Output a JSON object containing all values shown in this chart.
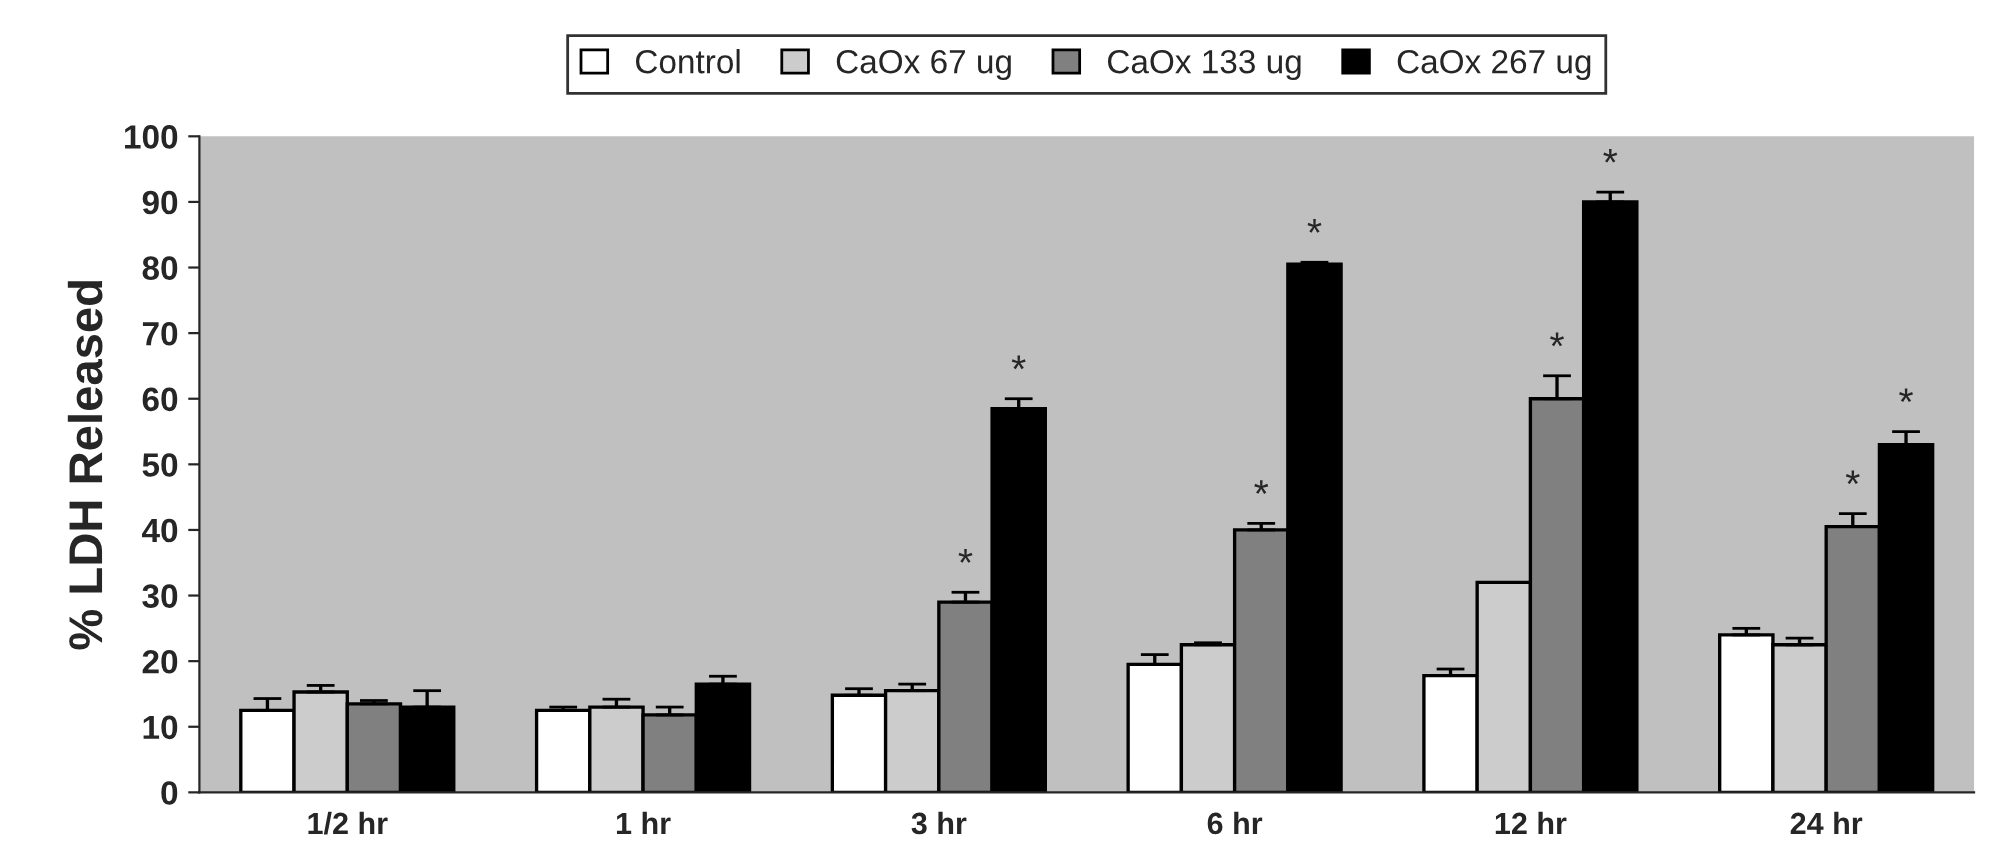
{
  "chart_data": {
    "type": "bar",
    "ylabel": "% LDH Released",
    "categories": [
      "1/2 hr",
      "1 hr",
      "3 hr",
      "6 hr",
      "12 hr",
      "24 hr"
    ],
    "series": [
      {
        "name": "Control",
        "color": "#ffffff",
        "values": [
          12.5,
          12.5,
          14.8,
          19.5,
          17.8,
          24
        ],
        "errors": [
          1.8,
          0.5,
          1,
          1.5,
          1,
          1
        ]
      },
      {
        "name": "CaOx 67 ug",
        "color": "#cccccc",
        "values": [
          15.3,
          13,
          15.5,
          22.5,
          32,
          22.5
        ],
        "errors": [
          1,
          1.2,
          1,
          0.3,
          0,
          1
        ]
      },
      {
        "name": "CaOx 133 ug",
        "color": "#808080",
        "values": [
          13.5,
          11.8,
          29,
          40,
          60,
          40.5
        ],
        "errors": [
          0.5,
          1.2,
          1.5,
          1,
          3.5,
          2
        ],
        "value_labels": [
          null,
          null,
          "*",
          "*",
          "*",
          "*"
        ]
      },
      {
        "name": "CaOx 267 ug",
        "color": "#000000",
        "values": [
          13,
          16.5,
          58.5,
          80.5,
          90,
          53
        ],
        "errors": [
          2.5,
          1.2,
          1.5,
          0.3,
          1.5,
          2
        ],
        "value_labels": [
          null,
          null,
          "*",
          "*",
          "*",
          "*"
        ]
      }
    ],
    "ylim": [
      0,
      100
    ],
    "yticks": [
      0,
      10,
      20,
      30,
      40,
      50,
      60,
      70,
      80,
      90,
      100
    ],
    "grid": false,
    "legend": "top"
  }
}
